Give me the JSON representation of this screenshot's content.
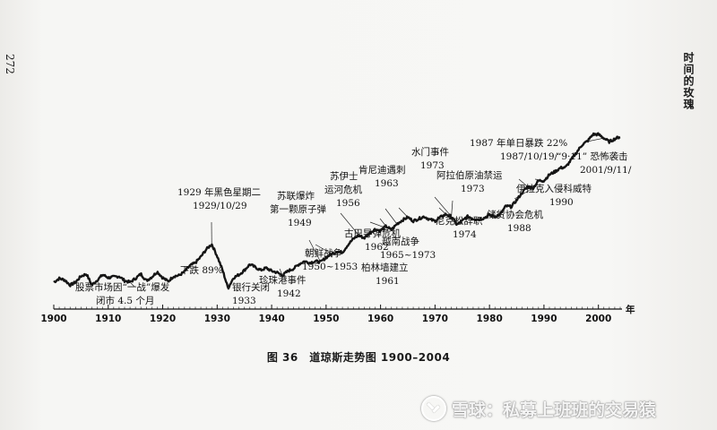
{
  "page": {
    "page_number": "272",
    "running_head": "时间的玫瑰"
  },
  "caption": "图 36　道琼斯走势图 1900–2004",
  "watermark": {
    "logo_icon": "xueqiu-logo-icon",
    "text": "雪球：私募上班班的交易猿"
  },
  "chart_data": {
    "type": "line",
    "title": "",
    "xlabel": "年",
    "ylabel": "",
    "xlim": [
      1900,
      2004
    ],
    "x_ticks": [
      1900,
      1910,
      1920,
      1930,
      1940,
      1950,
      1960,
      1970,
      1980,
      1990,
      2000
    ],
    "series": [
      {
        "values": [
          [
            1900,
            0.22
          ],
          [
            1901,
            0.27
          ],
          [
            1902,
            0.25
          ],
          [
            1903,
            0.18
          ],
          [
            1904,
            0.22
          ],
          [
            1905,
            0.3
          ],
          [
            1906,
            0.33
          ],
          [
            1907,
            0.18
          ],
          [
            1908,
            0.25
          ],
          [
            1909,
            0.32
          ],
          [
            1910,
            0.28
          ],
          [
            1911,
            0.29
          ],
          [
            1912,
            0.3
          ],
          [
            1913,
            0.24
          ],
          [
            1914,
            0.22
          ],
          [
            1915,
            0.27
          ],
          [
            1916,
            0.33
          ],
          [
            1917,
            0.24
          ],
          [
            1918,
            0.29
          ],
          [
            1919,
            0.36
          ],
          [
            1920,
            0.28
          ],
          [
            1921,
            0.23
          ],
          [
            1922,
            0.3
          ],
          [
            1923,
            0.31
          ],
          [
            1924,
            0.36
          ],
          [
            1925,
            0.44
          ],
          [
            1926,
            0.48
          ],
          [
            1927,
            0.56
          ],
          [
            1928,
            0.66
          ],
          [
            1929,
            0.73
          ],
          [
            1930,
            0.57
          ],
          [
            1931,
            0.38
          ],
          [
            1932,
            0.14
          ],
          [
            1933,
            0.28
          ],
          [
            1934,
            0.32
          ],
          [
            1935,
            0.38
          ],
          [
            1936,
            0.46
          ],
          [
            1937,
            0.42
          ],
          [
            1938,
            0.38
          ],
          [
            1939,
            0.41
          ],
          [
            1940,
            0.37
          ],
          [
            1941,
            0.35
          ],
          [
            1942,
            0.31
          ],
          [
            1943,
            0.37
          ],
          [
            1944,
            0.4
          ],
          [
            1945,
            0.46
          ],
          [
            1946,
            0.5
          ],
          [
            1947,
            0.48
          ],
          [
            1948,
            0.5
          ],
          [
            1949,
            0.49
          ],
          [
            1950,
            0.55
          ],
          [
            1951,
            0.6
          ],
          [
            1952,
            0.63
          ],
          [
            1953,
            0.62
          ],
          [
            1954,
            0.72
          ],
          [
            1955,
            0.8
          ],
          [
            1956,
            0.85
          ],
          [
            1957,
            0.81
          ],
          [
            1958,
            0.88
          ],
          [
            1959,
            0.93
          ],
          [
            1960,
            0.91
          ],
          [
            1961,
            0.97
          ],
          [
            1962,
            0.92
          ],
          [
            1963,
            1.0
          ],
          [
            1964,
            1.05
          ],
          [
            1965,
            1.09
          ],
          [
            1966,
            1.04
          ],
          [
            1967,
            1.07
          ],
          [
            1968,
            1.1
          ],
          [
            1969,
            1.06
          ],
          [
            1970,
            1.04
          ],
          [
            1971,
            1.09
          ],
          [
            1972,
            1.13
          ],
          [
            1973,
            1.1
          ],
          [
            1974,
            0.99
          ],
          [
            1975,
            1.04
          ],
          [
            1976,
            1.1
          ],
          [
            1977,
            1.07
          ],
          [
            1978,
            1.06
          ],
          [
            1979,
            1.08
          ],
          [
            1980,
            1.12
          ],
          [
            1981,
            1.1
          ],
          [
            1982,
            1.13
          ],
          [
            1983,
            1.24
          ],
          [
            1984,
            1.23
          ],
          [
            1985,
            1.32
          ],
          [
            1986,
            1.42
          ],
          [
            1987,
            1.5
          ],
          [
            1988,
            1.48
          ],
          [
            1989,
            1.58
          ],
          [
            1990,
            1.58
          ],
          [
            1991,
            1.66
          ],
          [
            1992,
            1.7
          ],
          [
            1993,
            1.75
          ],
          [
            1994,
            1.76
          ],
          [
            1995,
            1.86
          ],
          [
            1996,
            1.96
          ],
          [
            1997,
            2.06
          ],
          [
            1998,
            2.11
          ],
          [
            1999,
            2.2
          ],
          [
            2000,
            2.2
          ],
          [
            2001,
            2.15
          ],
          [
            2002,
            2.1
          ],
          [
            2003,
            2.14
          ],
          [
            2004,
            2.17
          ]
        ]
      }
    ],
    "annotations": [
      {
        "lines": [
          "股票市场因“一战”爆发",
          "闭市 4.5 个月"
        ],
        "x": 1914,
        "y": 0.22
      },
      {
        "lines": [
          "1929 年黑色星期二",
          "1929/10/29"
        ],
        "x": 1929,
        "y": 0.73
      },
      {
        "lines": [
          "下跌 89%"
        ],
        "x": 1932,
        "y": 0.14
      },
      {
        "lines": [
          "银行关闭",
          "1933"
        ],
        "x": 1933,
        "y": 0.28
      },
      {
        "lines": [
          "苏联爆炸",
          "第一颗原子弹",
          "1949"
        ],
        "x": 1949,
        "y": 0.49
      },
      {
        "lines": [
          "珍珠港事件",
          "1942"
        ],
        "x": 1942,
        "y": 0.31
      },
      {
        "lines": [
          "朝鲜战争",
          "1950~1953"
        ],
        "x": 1951,
        "y": 0.6
      },
      {
        "lines": [
          "苏伊士",
          "运河危机",
          "1956"
        ],
        "x": 1956,
        "y": 0.85
      },
      {
        "lines": [
          "古巴导弹危机",
          "1962"
        ],
        "x": 1962,
        "y": 0.92
      },
      {
        "lines": [
          "肯尼迪遇刺",
          "1963"
        ],
        "x": 1963,
        "y": 1.0
      },
      {
        "lines": [
          "柏林墙建立",
          "1961"
        ],
        "x": 1961,
        "y": 0.97
      },
      {
        "lines": [
          "越南战争",
          "1965~1973"
        ],
        "x": 1965,
        "y": 1.09
      },
      {
        "lines": [
          "水门事件",
          "1973"
        ],
        "x": 1973,
        "y": 1.1
      },
      {
        "lines": [
          "尼克松辞职",
          "1974"
        ],
        "x": 1974,
        "y": 0.99
      },
      {
        "lines": [
          "阿拉伯原油禁运",
          "1973"
        ],
        "x": 1973,
        "y": 1.1
      },
      {
        "lines": [
          "1987 年单日暴跌 22%",
          "1987/10/19/"
        ],
        "x": 1987,
        "y": 1.5
      },
      {
        "lines": [
          "储贷协会危机",
          "1988"
        ],
        "x": 1988,
        "y": 1.48
      },
      {
        "lines": [
          "伊拉克入侵科威特",
          "1990"
        ],
        "x": 1990,
        "y": 1.58
      },
      {
        "lines": [
          "“9·11” 恐怖袭击",
          "2001/9/11/"
        ],
        "x": 2001,
        "y": 2.15
      }
    ]
  }
}
